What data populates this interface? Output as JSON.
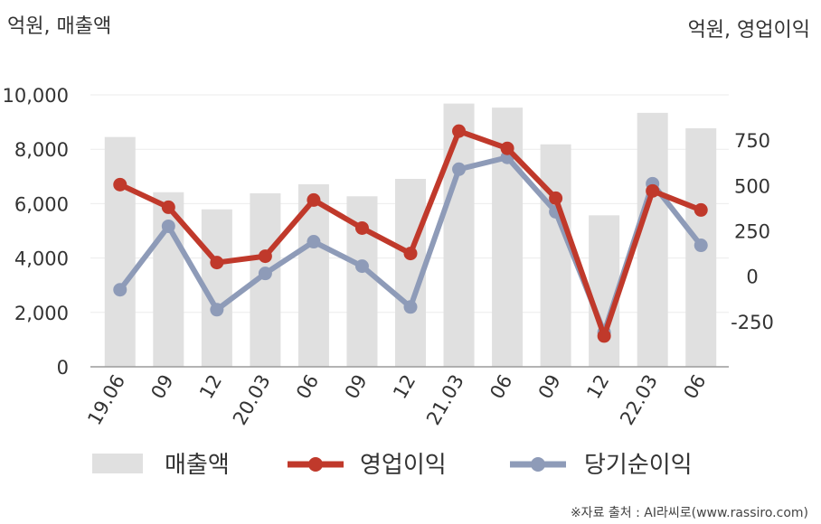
{
  "chart_data": {
    "type": "bar",
    "left_axis_unit": "억원, 매출액",
    "right_axis_unit": "억원, 영업이익",
    "categories": [
      "19.06",
      "09",
      "12",
      "20.03",
      "06",
      "09",
      "12",
      "21.03",
      "06",
      "09",
      "12",
      "22.03",
      "06"
    ],
    "y_left": {
      "min": 0,
      "max": 10000,
      "ticks": [
        "0",
        "2,000",
        "4,000",
        "6,000",
        "8,000",
        "10,000"
      ]
    },
    "y_right": {
      "min": -500,
      "max": 1000,
      "ticks": [
        "-250",
        "0",
        "250",
        "500",
        "750"
      ]
    },
    "series": [
      {
        "name": "매출액",
        "kind": "bar",
        "axis": "left",
        "color": "#e0e0e0",
        "values": [
          8450,
          6420,
          5790,
          6380,
          6710,
          6270,
          6910,
          9680,
          9530,
          8180,
          5570,
          9340,
          8770
        ]
      },
      {
        "name": "영업이익",
        "kind": "line",
        "axis": "right",
        "color": "#c0392b",
        "values": [
          505,
          380,
          75,
          110,
          420,
          265,
          125,
          800,
          705,
          430,
          -330,
          470,
          365
        ]
      },
      {
        "name": "당기순이익",
        "kind": "line",
        "axis": "right",
        "color": "#8e9bb8",
        "values": [
          -75,
          275,
          -185,
          15,
          190,
          55,
          -170,
          590,
          655,
          355,
          -310,
          510,
          170
        ]
      }
    ],
    "grid": true,
    "legend_position": "bottom"
  },
  "source": "※자료 출처 : AI라씨로(www.rassiro.com)"
}
